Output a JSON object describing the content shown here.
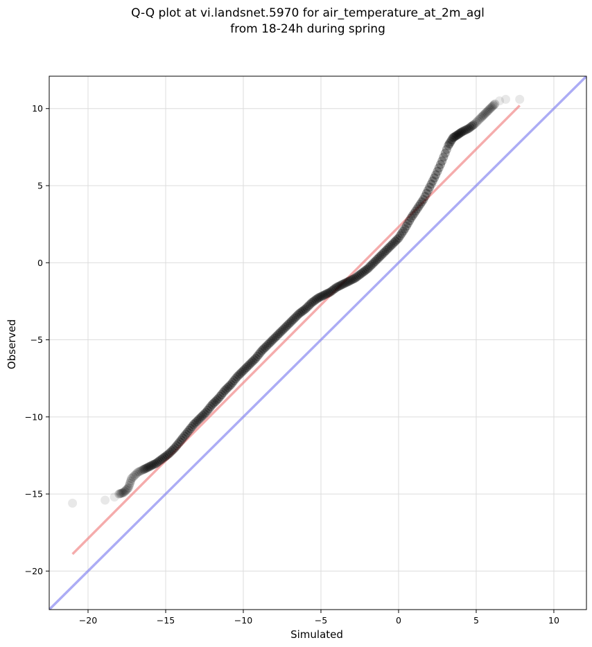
{
  "chart_data": {
    "type": "scatter",
    "title_line1": "Q-Q plot at vi.landsnet.5970 for air_temperature_at_2m_agl",
    "title_line2": "from 18-24h during spring",
    "xlabel": "Simulated",
    "ylabel": "Observed",
    "xlim": [
      -22.5,
      12.1
    ],
    "ylim": [
      -22.5,
      12.1
    ],
    "xticks": [
      -20,
      -15,
      -10,
      -5,
      0,
      5,
      10
    ],
    "yticks": [
      -20,
      -15,
      -10,
      -5,
      0,
      5,
      10
    ],
    "xtick_labels": [
      "−20",
      "−15",
      "−10",
      "−5",
      "0",
      "5",
      "10"
    ],
    "ytick_labels": [
      "−20",
      "−15",
      "−10",
      "−5",
      "0",
      "5",
      "10"
    ],
    "grid": true,
    "series": [
      {
        "kind": "quantiles",
        "color": "#000000",
        "x": [
          -21.0,
          -18.9,
          -18.3,
          -18.0,
          -17.7,
          -17.4,
          -17.2,
          -16.8,
          -16.4,
          -16.0,
          -15.6,
          -15.2,
          -14.8,
          -14.4,
          -14.0,
          -13.6,
          -13.2,
          -12.8,
          -12.4,
          -12.0,
          -11.6,
          -11.2,
          -10.8,
          -10.4,
          -10.0,
          -9.6,
          -9.2,
          -8.8,
          -8.4,
          -8.0,
          -7.6,
          -7.2,
          -6.8,
          -6.4,
          -6.0,
          -5.6,
          -5.2,
          -4.8,
          -4.4,
          -4.0,
          -3.6,
          -3.2,
          -2.8,
          -2.4,
          -2.0,
          -1.6,
          -1.2,
          -0.8,
          -0.4,
          0.0,
          0.4,
          0.8,
          1.2,
          1.6,
          2.0,
          2.4,
          2.8,
          3.2,
          3.5,
          3.8,
          4.1,
          4.5,
          4.9,
          5.3,
          5.6,
          5.9,
          6.2,
          6.5,
          6.9,
          7.8
        ],
        "y": [
          -15.6,
          -15.4,
          -15.2,
          -15.0,
          -14.9,
          -14.6,
          -14.0,
          -13.6,
          -13.4,
          -13.2,
          -13.0,
          -12.7,
          -12.4,
          -12.0,
          -11.5,
          -11.0,
          -10.5,
          -10.1,
          -9.7,
          -9.2,
          -8.8,
          -8.3,
          -7.9,
          -7.4,
          -7.0,
          -6.6,
          -6.2,
          -5.7,
          -5.3,
          -4.9,
          -4.5,
          -4.1,
          -3.7,
          -3.3,
          -3.0,
          -2.6,
          -2.3,
          -2.1,
          -1.9,
          -1.6,
          -1.4,
          -1.2,
          -1.0,
          -0.7,
          -0.4,
          0.0,
          0.4,
          0.8,
          1.2,
          1.6,
          2.2,
          2.9,
          3.5,
          4.1,
          4.9,
          5.7,
          6.6,
          7.6,
          8.1,
          8.3,
          8.5,
          8.7,
          9.0,
          9.4,
          9.7,
          10.0,
          10.3,
          10.5,
          10.6,
          10.6
        ]
      },
      {
        "kind": "fit-line",
        "color": "#f08080",
        "x": [
          -21.0,
          7.8
        ],
        "y": [
          -18.9,
          10.2
        ]
      },
      {
        "kind": "identity-line",
        "color": "#8080f0",
        "x": [
          -22.5,
          12.1
        ],
        "y": [
          -22.5,
          12.1
        ]
      }
    ]
  }
}
